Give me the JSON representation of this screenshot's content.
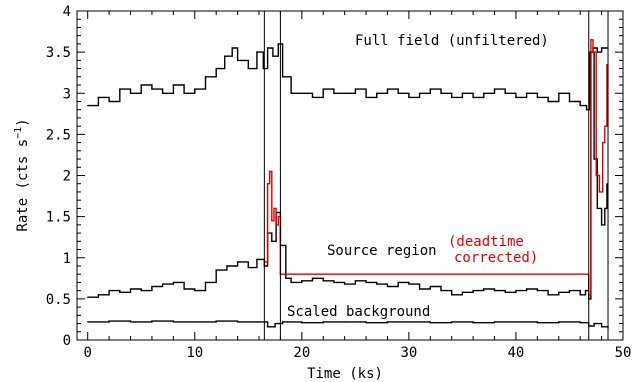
{
  "chart_data": {
    "type": "line",
    "title": "",
    "xlabel": "Time (ks)",
    "ylabel_main": "Rate (cts s",
    "ylabel_exp": "−1",
    "ylabel_close": ")",
    "xlim": [
      -1,
      50
    ],
    "ylim": [
      0,
      4
    ],
    "x_ticks": [
      0,
      10,
      20,
      30,
      40,
      50
    ],
    "y_ticks": [
      0,
      0.5,
      1,
      1.5,
      2,
      2.5,
      3,
      3.5,
      4
    ],
    "y_tick_labels": [
      "0",
      "0.5",
      "1",
      "1.5",
      "2",
      "2.5",
      "3",
      "3.5",
      "4"
    ],
    "grid": false,
    "vertical_lines": [
      16.5,
      18.0,
      46.8,
      48.6
    ],
    "annotations": {
      "full_field": "Full field (unfiltered)",
      "source_region": "Source region",
      "deadtime_line1": "(deadtime",
      "deadtime_line2": "corrected)",
      "scaled_background": "Scaled background"
    },
    "series": [
      {
        "name": "Full field (unfiltered)",
        "color": "#000000",
        "style": "step",
        "x": [
          0,
          1,
          2,
          3,
          4,
          5,
          6,
          7,
          8,
          9,
          10,
          11,
          12,
          12.8,
          13.5,
          14,
          15,
          15.8,
          16.4,
          16.8,
          17.3,
          17.8,
          18.2,
          19,
          20,
          21,
          22,
          23,
          24,
          25,
          26,
          27,
          28,
          29,
          30,
          31,
          32,
          33,
          34,
          35,
          36,
          37,
          38,
          39,
          40,
          41,
          42,
          43,
          44,
          45,
          46,
          46.6,
          46.9,
          47.2,
          47.6,
          48,
          48.3,
          48.6
        ],
        "y": [
          2.85,
          2.95,
          2.9,
          3.05,
          3.0,
          3.1,
          3.05,
          3.0,
          3.1,
          3.0,
          3.05,
          3.2,
          3.3,
          3.45,
          3.55,
          3.4,
          3.3,
          3.5,
          3.3,
          3.55,
          3.45,
          3.6,
          3.2,
          3.0,
          3.0,
          2.95,
          3.05,
          3.0,
          3.0,
          3.05,
          2.95,
          3.0,
          3.05,
          3.0,
          2.95,
          3.0,
          3.05,
          3.0,
          2.95,
          3.0,
          2.95,
          3.0,
          3.05,
          3.0,
          2.95,
          3.0,
          2.95,
          2.9,
          3.0,
          2.9,
          2.85,
          2.8,
          3.5,
          3.55,
          3.5,
          3.55,
          3.55,
          3.55
        ]
      },
      {
        "name": "Source region",
        "color": "#000000",
        "style": "step",
        "x": [
          0,
          1,
          2,
          3,
          4,
          5,
          6,
          7,
          8,
          9,
          10,
          11,
          12,
          13,
          14,
          15,
          15.8,
          16.5,
          16.8,
          17.2,
          17.6,
          18.0,
          18.5,
          19,
          20,
          21,
          22,
          23,
          24,
          25,
          26,
          27,
          28,
          29,
          30,
          31,
          32,
          33,
          34,
          35,
          36,
          37,
          38,
          39,
          40,
          41,
          42,
          43,
          44,
          45,
          46,
          46.5,
          46.8,
          47.0,
          47.3,
          47.6,
          48.0,
          48.3,
          48.5
        ],
        "y": [
          0.52,
          0.55,
          0.6,
          0.58,
          0.62,
          0.6,
          0.65,
          0.68,
          0.7,
          0.62,
          0.6,
          0.7,
          0.85,
          0.9,
          0.95,
          0.88,
          0.98,
          0.9,
          1.3,
          1.2,
          1.55,
          1.15,
          0.75,
          0.7,
          0.72,
          0.75,
          0.72,
          0.7,
          0.68,
          0.72,
          0.7,
          0.68,
          0.65,
          0.7,
          0.68,
          0.62,
          0.65,
          0.6,
          0.55,
          0.58,
          0.6,
          0.62,
          0.6,
          0.58,
          0.6,
          0.62,
          0.6,
          0.55,
          0.58,
          0.6,
          0.55,
          0.6,
          0.5,
          3.5,
          2.2,
          1.6,
          1.4,
          1.6,
          1.9
        ]
      },
      {
        "name": "(deadtime corrected)",
        "color": "#e00000",
        "style": "step",
        "x": [
          16.5,
          16.8,
          17.0,
          17.2,
          17.4,
          17.6,
          17.8,
          18.0,
          46.8,
          47.0,
          47.2,
          47.5,
          47.8,
          48.1,
          48.3,
          48.5
        ],
        "y": [
          0.95,
          1.9,
          2.05,
          1.45,
          1.6,
          1.4,
          1.5,
          0.8,
          0.55,
          3.65,
          3.5,
          2.0,
          1.8,
          2.4,
          2.6,
          3.35
        ]
      },
      {
        "name": "Scaled background",
        "color": "#000000",
        "style": "step",
        "x": [
          0,
          2,
          4,
          6,
          8,
          10,
          12,
          14,
          16,
          16.8,
          17.5,
          18.2,
          20,
          22,
          24,
          26,
          28,
          30,
          32,
          34,
          36,
          38,
          40,
          42,
          44,
          46,
          46.8,
          47.3,
          48,
          48.6
        ],
        "y": [
          0.22,
          0.23,
          0.22,
          0.23,
          0.22,
          0.22,
          0.23,
          0.22,
          0.22,
          0.16,
          0.2,
          0.22,
          0.21,
          0.22,
          0.22,
          0.21,
          0.22,
          0.22,
          0.21,
          0.22,
          0.21,
          0.22,
          0.22,
          0.21,
          0.22,
          0.21,
          0.17,
          0.2,
          0.16,
          0.14
        ]
      }
    ]
  }
}
